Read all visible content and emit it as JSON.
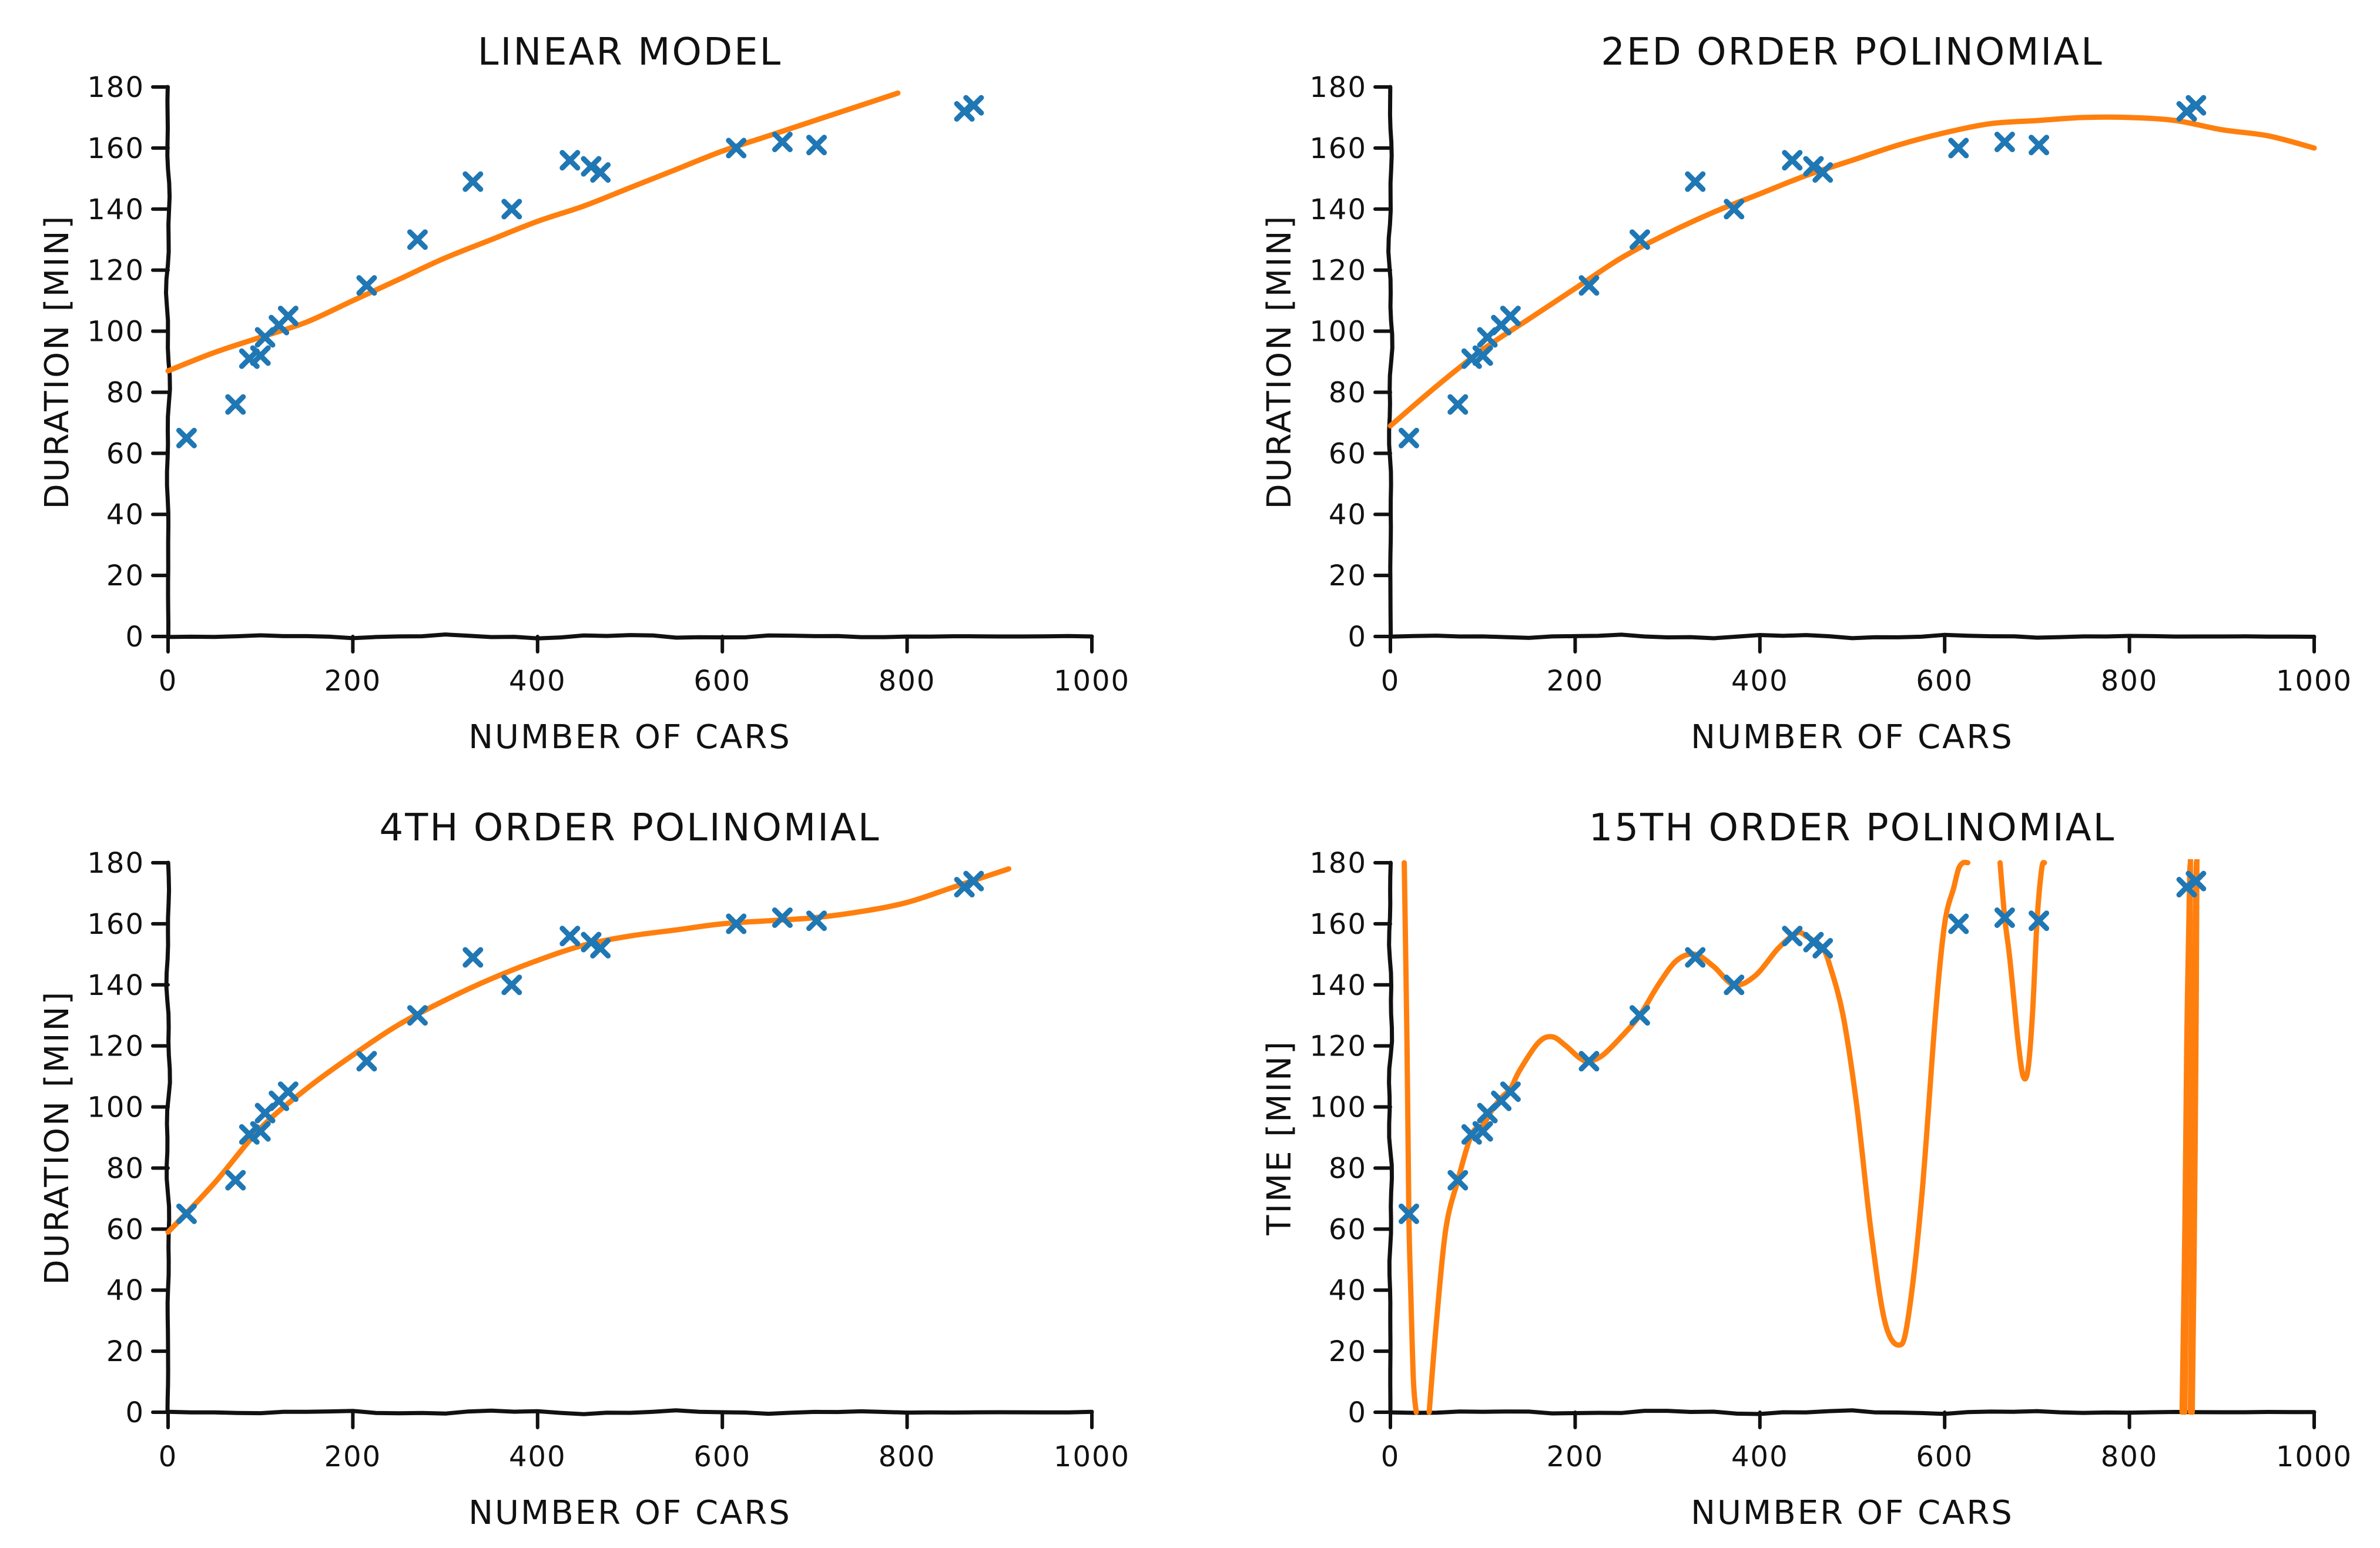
{
  "figure": {
    "background": "#ffffff",
    "fit_color": "#ff7f0e",
    "point_color": "#1f77b4",
    "ink_color": "#111111"
  },
  "chart_data": [
    {
      "id": "linear",
      "type": "scatter+line",
      "title": "LINEAR MODEL",
      "xlabel": "NUMBER OF CARS",
      "ylabel": "DURATION [MIN]",
      "xlim": [
        0,
        1000
      ],
      "ylim": [
        0,
        180
      ],
      "xticks": [
        0,
        200,
        400,
        600,
        800,
        1000
      ],
      "yticks": [
        0,
        20,
        40,
        60,
        80,
        100,
        120,
        140,
        160,
        180
      ],
      "grid": false,
      "points": {
        "x": [
          20,
          73,
          88,
          100,
          105,
          120,
          130,
          215,
          270,
          330,
          372,
          435,
          458,
          468,
          615,
          665,
          702,
          862,
          872
        ],
        "y": [
          65,
          76,
          91,
          92,
          98,
          102,
          105,
          115,
          130,
          149,
          140,
          156,
          154,
          152,
          160,
          162,
          161,
          172,
          174
        ]
      },
      "fit": {
        "x": [
          0,
          50,
          100,
          150,
          200,
          250,
          300,
          350,
          400,
          450,
          500,
          550,
          600,
          650,
          700,
          750,
          790
        ],
        "y": [
          87,
          93,
          98,
          103,
          110,
          117,
          124,
          130,
          136,
          141,
          147,
          153,
          159,
          164,
          169,
          174,
          178
        ]
      }
    },
    {
      "id": "poly2",
      "type": "scatter+line",
      "title": "2ED ORDER POLINOMIAL",
      "xlabel": "NUMBER OF CARS",
      "ylabel": "DURATION [MIN]",
      "xlim": [
        0,
        1000
      ],
      "ylim": [
        0,
        180
      ],
      "xticks": [
        0,
        200,
        400,
        600,
        800,
        1000
      ],
      "yticks": [
        0,
        20,
        40,
        60,
        80,
        100,
        120,
        140,
        160,
        180
      ],
      "grid": false,
      "points": {
        "x": [
          20,
          73,
          88,
          100,
          105,
          120,
          130,
          215,
          270,
          330,
          372,
          435,
          458,
          468,
          615,
          665,
          702,
          862,
          872
        ],
        "y": [
          65,
          76,
          91,
          92,
          98,
          102,
          105,
          115,
          130,
          149,
          140,
          156,
          154,
          152,
          160,
          162,
          161,
          172,
          174
        ]
      },
      "fit": {
        "x": [
          0,
          50,
          100,
          150,
          200,
          250,
          300,
          350,
          400,
          450,
          500,
          550,
          600,
          650,
          700,
          750,
          800,
          850,
          900,
          950,
          1000
        ],
        "y": [
          69,
          82,
          94,
          104,
          114,
          124,
          132,
          139,
          145,
          151,
          156,
          161,
          165,
          168,
          169,
          170,
          170,
          169,
          166,
          164,
          160
        ]
      }
    },
    {
      "id": "poly4",
      "type": "scatter+line",
      "title": "4TH ORDER POLINOMIAL",
      "xlabel": "NUMBER OF CARS",
      "ylabel": "DURATION [MIN]",
      "xlim": [
        0,
        1000
      ],
      "ylim": [
        0,
        180
      ],
      "xticks": [
        0,
        200,
        400,
        600,
        800,
        1000
      ],
      "yticks": [
        0,
        20,
        40,
        60,
        80,
        100,
        120,
        140,
        160,
        180
      ],
      "grid": false,
      "points": {
        "x": [
          20,
          73,
          88,
          100,
          105,
          120,
          130,
          215,
          270,
          330,
          372,
          435,
          458,
          468,
          615,
          665,
          702,
          862,
          872
        ],
        "y": [
          65,
          76,
          91,
          92,
          98,
          102,
          105,
          115,
          130,
          149,
          140,
          156,
          154,
          152,
          160,
          162,
          161,
          172,
          174
        ]
      },
      "fit": {
        "x": [
          0,
          50,
          100,
          150,
          200,
          250,
          300,
          350,
          400,
          450,
          500,
          550,
          600,
          650,
          700,
          750,
          800,
          850,
          900,
          910
        ],
        "y": [
          59,
          75,
          93,
          106,
          117,
          127,
          135,
          142,
          148,
          153,
          156,
          158,
          160,
          161,
          162,
          164,
          167,
          172,
          177,
          178
        ]
      }
    },
    {
      "id": "poly15",
      "type": "scatter+line",
      "title": "15TH ORDER POLINOMIAL",
      "xlabel": "NUMBER OF CARS",
      "ylabel": "TIME [MIN]",
      "xlim": [
        0,
        1000
      ],
      "ylim": [
        0,
        180
      ],
      "xticks": [
        0,
        200,
        400,
        600,
        800,
        1000
      ],
      "yticks": [
        0,
        20,
        40,
        60,
        80,
        100,
        120,
        140,
        160,
        180
      ],
      "grid": false,
      "points": {
        "x": [
          20,
          73,
          88,
          100,
          105,
          120,
          130,
          215,
          270,
          330,
          372,
          435,
          458,
          468,
          615,
          665,
          702,
          862,
          872
        ],
        "y": [
          65,
          76,
          91,
          92,
          98,
          102,
          105,
          115,
          130,
          149,
          140,
          156,
          154,
          152,
          160,
          162,
          161,
          172,
          174
        ]
      },
      "fit_segments": [
        {
          "x": [
            15,
            18,
            20,
            22,
            25,
            28
          ],
          "y": [
            180,
            120,
            65,
            40,
            10,
            0
          ]
        },
        {
          "x": [
            42,
            50,
            60,
            73,
            88,
            100,
            110,
            120,
            130,
            140,
            160,
            175,
            190,
            205,
            215,
            230,
            250,
            270,
            290,
            310,
            330,
            350,
            372,
            395,
            420,
            440,
            450,
            460,
            468,
            475,
            490,
            505,
            520,
            535,
            550,
            560,
            575,
            590,
            600,
            610,
            615,
            620,
            625
          ],
          "y": [
            0,
            30,
            60,
            76,
            91,
            94,
            99,
            103,
            106,
            112,
            121,
            123,
            120,
            116,
            115,
            117,
            123,
            130,
            140,
            148,
            150,
            146,
            140,
            143,
            152,
            157,
            156,
            154,
            152,
            147,
            130,
            100,
            60,
            30,
            22,
            30,
            70,
            130,
            160,
            172,
            178,
            180,
            180
          ]
        },
        {
          "x": [
            660,
            665,
            670,
            675,
            680,
            685,
            690,
            695,
            700,
            705,
            708
          ],
          "y": [
            180,
            162,
            150,
            135,
            120,
            110,
            112,
            130,
            161,
            178,
            180
          ]
        },
        {
          "x": [
            857,
            860,
            862,
            865,
            866,
            866,
            865,
            862,
            860
          ],
          "y": [
            0,
            60,
            120,
            172,
            180,
            180,
            120,
            50,
            0
          ]
        },
        {
          "x": [
            866,
            868,
            870,
            872,
            873,
            873,
            872,
            870,
            868
          ],
          "y": [
            0,
            60,
            120,
            174,
            180,
            180,
            120,
            50,
            0
          ]
        }
      ]
    }
  ]
}
